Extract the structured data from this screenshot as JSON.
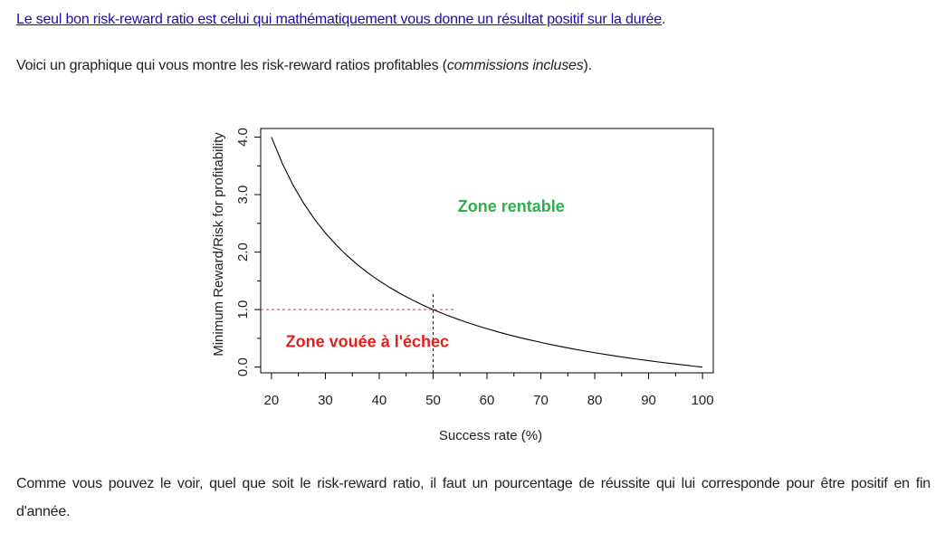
{
  "article": {
    "link_text": "Le seul bon risk-reward ratio est celui qui mathématiquement vous donne un résultat positif sur la durée",
    "link_after": ".",
    "intro_before": "Voici un graphique qui vous montre les risk-reward ratios profitables (",
    "intro_italic": "commissions incluses",
    "intro_after": ").",
    "conclusion": "Comme vous pouvez le voir, quel que soit le risk-reward ratio, il faut un pourcentage de réussite qui lui corresponde pour être positif en fin d'année."
  },
  "colors": {
    "link": "#1a0dab",
    "zone_profit": "#2bb04a",
    "zone_fail": "#e12020",
    "reference_line": "#b5485a"
  },
  "chart_data": {
    "type": "line",
    "title": "",
    "xlabel": "Success rate (%)",
    "ylabel": "Minimum Reward/Risk for profitability",
    "xlim": [
      18,
      102
    ],
    "ylim": [
      -0.1,
      4.15
    ],
    "x_ticks": [
      20,
      30,
      40,
      50,
      60,
      70,
      80,
      90,
      100
    ],
    "x_tick_labels": [
      "20",
      "30",
      "40",
      "50",
      "60",
      "70",
      "80",
      "90",
      "100"
    ],
    "y_ticks": [
      0,
      1,
      2,
      3,
      4
    ],
    "y_tick_labels": [
      "0.0",
      "1.0",
      "2.0",
      "3.0",
      "4.0"
    ],
    "x_minor_ticks": [
      25,
      35,
      45,
      55,
      65,
      75,
      85,
      95
    ],
    "y_minor_ticks": [
      0.5,
      1.5,
      2.5,
      3.5
    ],
    "grid": false,
    "curve": {
      "formula": "(100 - x) / x",
      "x": [
        20,
        22,
        24,
        26,
        28,
        30,
        32,
        34,
        36,
        38,
        40,
        42,
        44,
        46,
        48,
        50,
        52,
        54,
        56,
        58,
        60,
        62,
        64,
        66,
        68,
        70,
        72,
        74,
        76,
        78,
        80,
        82,
        84,
        86,
        88,
        90,
        92,
        94,
        96,
        98,
        100
      ],
      "y": [
        4.0,
        3.545,
        3.167,
        2.846,
        2.571,
        2.333,
        2.125,
        1.941,
        1.778,
        1.632,
        1.5,
        1.381,
        1.273,
        1.174,
        1.083,
        1.0,
        0.923,
        0.852,
        0.786,
        0.724,
        0.667,
        0.613,
        0.5625,
        0.515,
        0.471,
        0.429,
        0.389,
        0.351,
        0.316,
        0.282,
        0.25,
        0.22,
        0.19,
        0.163,
        0.136,
        0.111,
        0.087,
        0.064,
        0.042,
        0.02,
        0.0
      ]
    },
    "reference_lines": {
      "horizontal": {
        "y": 1.0,
        "x_from": 18,
        "x_to": 54
      },
      "vertical": {
        "x": 50,
        "y_from": -0.1,
        "y_to": 1.3
      }
    },
    "annotations": [
      {
        "name": "zone-rentable-label",
        "text": "Zone rentable",
        "x": 64.5,
        "y": 2.7,
        "color_key": "zone_profit"
      },
      {
        "name": "zone-echec-label",
        "text": "Zone vouée à l'échec",
        "x": 37.8,
        "y": 0.35,
        "color_key": "zone_fail"
      }
    ]
  }
}
